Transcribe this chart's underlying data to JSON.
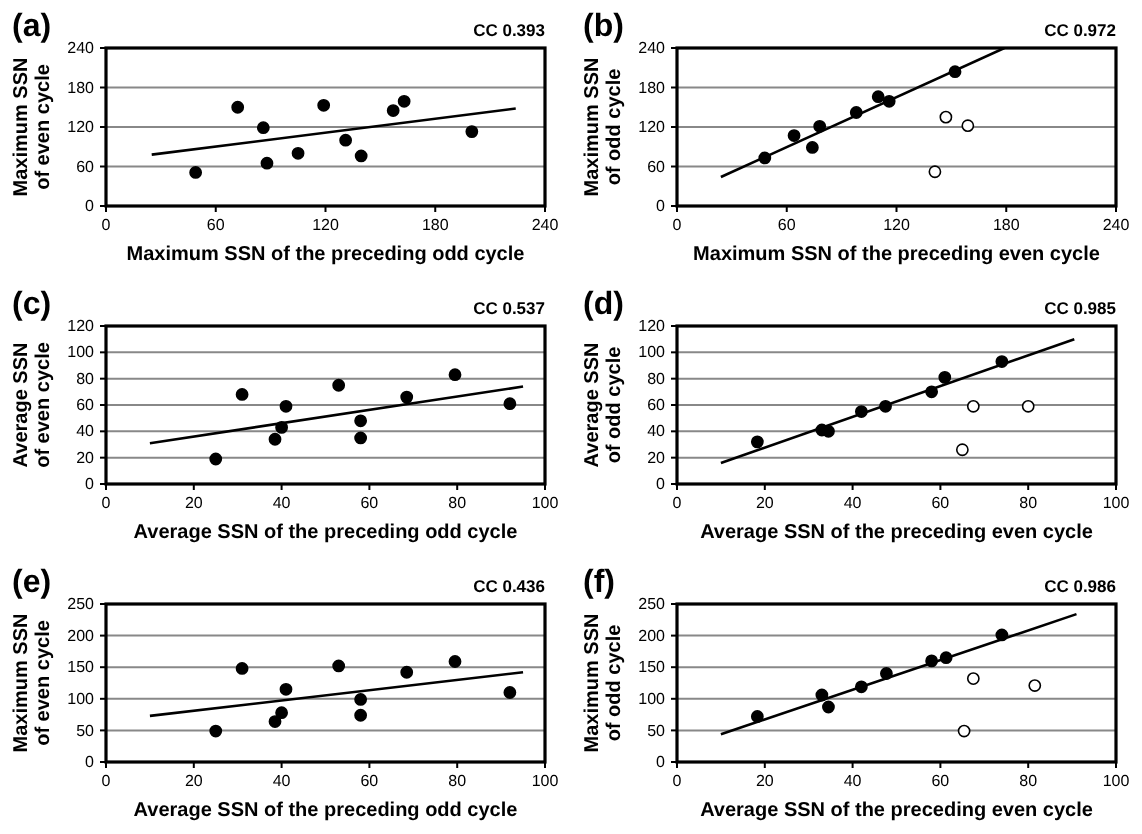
{
  "chart_data": [
    {
      "type": "scatter",
      "title": "(a)",
      "xlabel": "Maximum SSN of the preceding odd cycle",
      "ylabel": "Maximum SSN of even cycle",
      "annotations": [
        "CC 0.393"
      ],
      "xlim": [
        0,
        240
      ],
      "ylim": [
        0,
        240
      ],
      "xticks": [
        0,
        60,
        120,
        180,
        240
      ],
      "yticks": [
        0,
        60,
        120,
        180,
        240
      ],
      "grid": "y",
      "marker": "circle",
      "series": [
        {
          "color": "#000000",
          "x": [
            49,
            72,
            86,
            88,
            105,
            119,
            131,
            139.5,
            157,
            163,
            200
          ],
          "values": [
            51,
            150,
            119,
            65,
            80,
            153,
            100,
            76,
            145,
            159,
            113
          ]
        },
        {
          "type": "line",
          "color": "#000000",
          "marker": "none",
          "x": [
            25,
            224
          ],
          "values": [
            78,
            148
          ]
        }
      ]
    },
    {
      "type": "scatter",
      "title": "(b)",
      "xlabel": "Maximum SSN of the preceding even cycle",
      "ylabel": "Maximum SSN of odd cycle",
      "annotations": [
        "CC 0.972"
      ],
      "xlim": [
        0,
        240
      ],
      "ylim": [
        0,
        240
      ],
      "xticks": [
        0,
        60,
        120,
        180,
        240
      ],
      "yticks": [
        0,
        60,
        120,
        180,
        240
      ],
      "grid": "y",
      "marker": "circle",
      "series": [
        {
          "color": "#000000",
          "x": [
            48,
            64,
            74,
            78,
            98,
            110,
            116,
            152
          ],
          "values": [
            73,
            107,
            89,
            121,
            142,
            166,
            159,
            204
          ]
        },
        {
          "color": "#ffffff",
          "x": [
            147,
            159,
            141
          ],
          "values": [
            135,
            122,
            52
          ]
        },
        {
          "type": "line",
          "color": "#000000",
          "marker": "none",
          "x": [
            24,
            179
          ],
          "values": [
            44,
            240
          ]
        }
      ]
    },
    {
      "type": "scatter",
      "title": "(c)",
      "xlabel": "Average SSN of the preceding odd cycle",
      "ylabel": "Average SSN of even cycle",
      "annotations": [
        "CC 0.537"
      ],
      "xlim": [
        0,
        100
      ],
      "ylim": [
        0,
        120
      ],
      "xticks": [
        0,
        20,
        40,
        60,
        80,
        100
      ],
      "yticks": [
        0,
        20,
        40,
        60,
        80,
        100,
        120
      ],
      "grid": "y",
      "marker": "circle",
      "series": [
        {
          "color": "#000000",
          "x": [
            25,
            31,
            38.5,
            40,
            41,
            53,
            58,
            58,
            68.5,
            79.5,
            92
          ],
          "values": [
            19,
            68,
            34,
            43,
            59,
            75,
            48,
            35,
            66,
            83,
            61
          ]
        },
        {
          "type": "line",
          "color": "#000000",
          "marker": "none",
          "x": [
            10,
            95
          ],
          "values": [
            31,
            74
          ]
        }
      ]
    },
    {
      "type": "scatter",
      "title": "(d)",
      "xlabel": "Average SSN of the preceding even cycle",
      "ylabel": "Average SSN of odd cycle",
      "annotations": [
        "CC 0.985"
      ],
      "xlim": [
        0,
        100
      ],
      "ylim": [
        0,
        120
      ],
      "xticks": [
        0,
        20,
        40,
        60,
        80,
        100
      ],
      "yticks": [
        0,
        20,
        40,
        60,
        80,
        100,
        120
      ],
      "grid": "y",
      "marker": "circle",
      "series": [
        {
          "color": "#000000",
          "x": [
            18.3,
            33,
            34.5,
            42,
            47.5,
            58,
            61,
            74
          ],
          "values": [
            32,
            41,
            40,
            55,
            59,
            70,
            81,
            93
          ]
        },
        {
          "color": "#ffffff",
          "x": [
            67.5,
            80,
            65
          ],
          "values": [
            59,
            59,
            26
          ]
        },
        {
          "type": "line",
          "color": "#000000",
          "marker": "none",
          "x": [
            10,
            90.5
          ],
          "values": [
            16,
            110
          ]
        }
      ]
    },
    {
      "type": "scatter",
      "title": "(e)",
      "xlabel": "Average SSN of the preceding odd cycle",
      "ylabel": "Maximum SSN of even cycle",
      "annotations": [
        "CC 0.436"
      ],
      "xlim": [
        0,
        100
      ],
      "ylim": [
        0,
        250
      ],
      "xticks": [
        0,
        20,
        40,
        60,
        80,
        100
      ],
      "yticks": [
        0,
        50,
        100,
        150,
        200,
        250
      ],
      "grid": "y",
      "marker": "circle",
      "series": [
        {
          "color": "#000000",
          "x": [
            25,
            31,
            38.5,
            40,
            41,
            53,
            58,
            58,
            68.5,
            79.5,
            92
          ],
          "values": [
            49,
            148,
            64,
            78,
            115,
            152,
            99,
            74,
            142,
            159,
            110
          ]
        },
        {
          "type": "line",
          "color": "#000000",
          "marker": "none",
          "x": [
            10,
            95
          ],
          "values": [
            73,
            142
          ]
        }
      ]
    },
    {
      "type": "scatter",
      "title": "(f)",
      "xlabel": "Average SSN of the preceding even cycle",
      "ylabel": "Maximum SSN of odd cycle",
      "annotations": [
        "CC 0.986"
      ],
      "xlim": [
        0,
        100
      ],
      "ylim": [
        0,
        250
      ],
      "xticks": [
        0,
        20,
        40,
        60,
        80,
        100
      ],
      "yticks": [
        0,
        50,
        100,
        150,
        200,
        250
      ],
      "grid": "y",
      "marker": "circle",
      "series": [
        {
          "color": "#000000",
          "x": [
            18.3,
            33,
            34.5,
            42,
            47.7,
            58,
            61.3,
            74
          ],
          "values": [
            72,
            106,
            87,
            119,
            140,
            160,
            165,
            201
          ]
        },
        {
          "color": "#ffffff",
          "x": [
            67.5,
            81.5,
            65.4
          ],
          "values": [
            132,
            121,
            49
          ]
        },
        {
          "type": "line",
          "color": "#000000",
          "marker": "none",
          "x": [
            10,
            91
          ],
          "values": [
            44,
            234
          ]
        }
      ]
    }
  ]
}
